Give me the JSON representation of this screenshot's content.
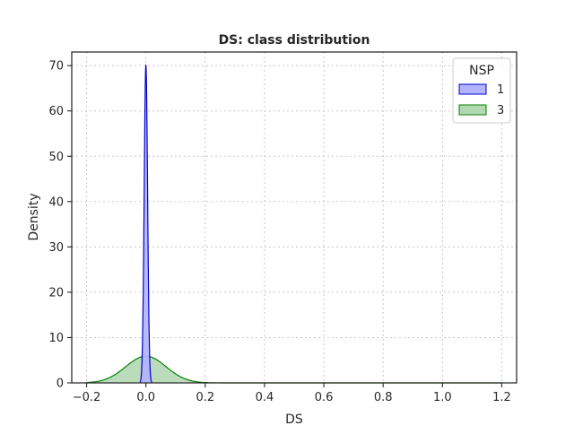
{
  "chart_data": {
    "type": "area",
    "title": "DS: class distribution",
    "xlabel": "DS",
    "ylabel": "Density",
    "xlim": [
      -0.25,
      1.25
    ],
    "ylim": [
      0,
      73
    ],
    "x_ticks": [
      -0.2,
      0.0,
      0.2,
      0.4,
      0.6,
      0.8,
      1.0,
      1.2
    ],
    "x_tick_labels": [
      "−0.2",
      "0.0",
      "0.2",
      "0.4",
      "0.6",
      "0.8",
      "1.0",
      "1.2"
    ],
    "y_ticks": [
      0,
      10,
      20,
      30,
      40,
      50,
      60,
      70
    ],
    "y_tick_labels": [
      "0",
      "10",
      "20",
      "30",
      "40",
      "50",
      "60",
      "70"
    ],
    "grid": true,
    "legend": {
      "title": "NSP",
      "placement": "top-right"
    },
    "series": [
      {
        "name": "1",
        "color": "#0000cc",
        "fill": "#b3b3ff",
        "kde": {
          "mean": 0.0,
          "std": 0.0057,
          "peak": 70,
          "x_range": [
            -0.02,
            0.02
          ]
        }
      },
      {
        "name": "3",
        "color": "#008000",
        "fill": "#b2d8b2",
        "kde": {
          "mean": 0.0,
          "std": 0.068,
          "peak": 5.9,
          "x_range": [
            -0.2,
            1.2
          ]
        }
      }
    ]
  }
}
